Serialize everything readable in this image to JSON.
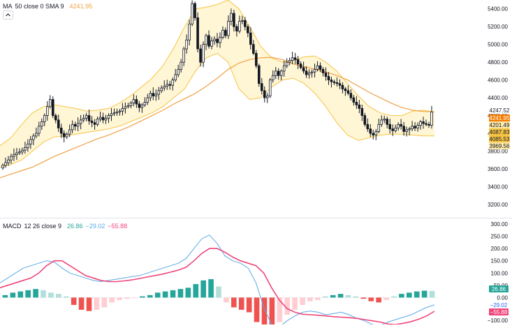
{
  "colors": {
    "up": "#26a69a",
    "down": "#ef5350",
    "candle_border": "#131722",
    "band_line": "#f6c445",
    "band_fill": "#fff4cc",
    "ma_line": "#f0a044",
    "macd_line": "#5aa9e6",
    "signal_line": "#f0457a",
    "hist_up_strong": "#26a69a",
    "hist_up_weak": "#b2dfdb",
    "hist_down_strong": "#ef5350",
    "hist_down_weak": "#ffcdd2",
    "axis_text": "#131722",
    "grid": "#f0f3fa"
  },
  "price_panel": {
    "indicator_title": "MA",
    "indicator_params": "50 close 0 SMA 9",
    "indicator_value": "4241.95",
    "y_ticks": [
      "5400.00",
      "5200.00",
      "5000.00",
      "4800.00",
      "4600.00",
      "4400.00",
      "4200.00",
      "4000.00",
      "3800.00",
      "3600.00",
      "3400.00",
      "3200.00"
    ],
    "badges": [
      {
        "label": "4247.52",
        "bg": "#ffffff",
        "fg": "#131722"
      },
      {
        "label": "4241.95",
        "bg": "#f57c00",
        "fg": "#ffffff"
      },
      {
        "label": "4201.49",
        "bg": "#fde9a8",
        "fg": "#131722"
      },
      {
        "label": "4087.83",
        "bg": "#f6c445",
        "fg": "#131722"
      },
      {
        "label": "4085.53",
        "bg": "#f6c445",
        "fg": "#131722"
      },
      {
        "label": "3969.56",
        "bg": "#fde9a8",
        "fg": "#131722"
      }
    ]
  },
  "macd_panel": {
    "indicator_title": "MACD",
    "indicator_params": "12 26 close 9",
    "hist_value": "26.86",
    "macd_value": "−29.02",
    "signal_value": "−55.88",
    "y_ticks": [
      "300.00",
      "250.00",
      "200.00",
      "150.00",
      "100.00",
      "50.00",
      "0.00",
      "−50.00",
      "−100.00"
    ],
    "badges": [
      {
        "label": "26.86",
        "bg": "#26a69a",
        "fg": "#ffffff"
      },
      {
        "label": "−29.02",
        "bg": "#ffffff",
        "fg": "#2962ff"
      },
      {
        "label": "−55.88",
        "bg": "#f0457a",
        "fg": "#ffffff"
      }
    ]
  },
  "chart_data": [
    {
      "type": "candlestick",
      "title": "",
      "ylim": [
        3050,
        5500
      ],
      "grid": false,
      "indicator": "MA 50 close 0 SMA 9",
      "candles_close": [
        3640,
        3670,
        3700,
        3740,
        3760,
        3780,
        3790,
        3810,
        3840,
        3880,
        3930,
        3970,
        4000,
        4080,
        4130,
        4200,
        4300,
        4380,
        4200,
        4150,
        4060,
        4000,
        3960,
        3990,
        4040,
        4100,
        4080,
        4110,
        4150,
        4170,
        4200,
        4140,
        4120,
        4100,
        4160,
        4180,
        4150,
        4170,
        4200,
        4220,
        4230,
        4240,
        4250,
        4280,
        4300,
        4310,
        4340,
        4380,
        4330,
        4290,
        4320,
        4350,
        4400,
        4450,
        4420,
        4440,
        4480,
        4510,
        4530,
        4550,
        4540,
        4600,
        4660,
        4720,
        4800,
        4950,
        5050,
        5230,
        5460,
        5300,
        4950,
        4800,
        5000,
        5100,
        4980,
        5040,
        5060,
        5020,
        5080,
        5160,
        5100,
        5260,
        5350,
        5200,
        5150,
        5260,
        5270,
        5200,
        5130,
        5000,
        4900,
        4760,
        4560,
        4480,
        4400,
        4420,
        4600,
        4650,
        4700,
        4650,
        4700,
        4760,
        4800,
        4820,
        4850,
        4830,
        4780,
        4740,
        4700,
        4660,
        4680,
        4690,
        4720,
        4760,
        4720,
        4680,
        4640,
        4600,
        4580,
        4570,
        4560,
        4540,
        4500,
        4480,
        4450,
        4400,
        4350,
        4320,
        4280,
        4200,
        4100,
        4050,
        4000,
        3980,
        4020,
        4100,
        4150,
        4160,
        4100,
        4050,
        4030,
        4060,
        4100,
        4080,
        4020,
        4040,
        4050,
        4080,
        4060,
        4090,
        4130,
        4110,
        4100,
        4090,
        4240
      ],
      "ma_series": [
        3500,
        3540,
        3580,
        3620,
        3680,
        3740,
        3790,
        3840,
        3890,
        3940,
        3980,
        4030,
        4080,
        4140,
        4200,
        4260,
        4330,
        4390,
        4450,
        4530,
        4620,
        4720,
        4790,
        4830,
        4850,
        4855,
        4830,
        4780,
        4750,
        4720,
        4690,
        4650,
        4600,
        4530,
        4460,
        4400,
        4340,
        4290,
        4260,
        4245,
        4242
      ],
      "bollinger_upper": [
        3860,
        3950,
        4100,
        4230,
        4300,
        4320,
        4300,
        4280,
        4250,
        4260,
        4280,
        4340,
        4420,
        4520,
        4620,
        4760,
        4960,
        5200,
        5400,
        5420,
        5450,
        5500,
        5400,
        5200,
        4980,
        4850,
        4800,
        4820,
        4860,
        4870,
        4800,
        4700,
        4560,
        4420,
        4300,
        4230,
        4200,
        4200,
        4250,
        4260,
        4240
      ],
      "bollinger_lower": [
        3620,
        3650,
        3700,
        3800,
        3900,
        3960,
        3970,
        3990,
        4010,
        4030,
        4050,
        4080,
        4130,
        4180,
        4230,
        4300,
        4400,
        4500,
        4700,
        4850,
        4900,
        4800,
        4500,
        4380,
        4400,
        4520,
        4600,
        4620,
        4560,
        4450,
        4300,
        4120,
        3980,
        3920,
        3950,
        3980,
        3990,
        3990,
        3980,
        3970,
        3970
      ]
    },
    {
      "type": "line",
      "title": "",
      "ylim": [
        -110,
        320
      ],
      "series": [
        {
          "role": "macd",
          "values": [
            60,
            80,
            100,
            120,
            130,
            140,
            150,
            145,
            120,
            100,
            90,
            80,
            70,
            65,
            70,
            75,
            80,
            85,
            90,
            100,
            110,
            120,
            130,
            140,
            160,
            200,
            240,
            255,
            220,
            170,
            150,
            140,
            120,
            60,
            -40,
            -110,
            -120,
            -95,
            -75,
            -60,
            -55,
            -60,
            -70,
            -65,
            -60,
            -70,
            -85,
            -95,
            -110,
            -115,
            -100,
            -90,
            -80,
            -70,
            -55,
            -40,
            -30
          ]
        },
        {
          "role": "signal",
          "values": [
            40,
            50,
            60,
            70,
            80,
            100,
            130,
            150,
            150,
            130,
            110,
            90,
            80,
            70,
            65,
            65,
            68,
            72,
            78,
            84,
            90,
            96,
            104,
            112,
            124,
            150,
            180,
            200,
            200,
            185,
            165,
            150,
            140,
            130,
            100,
            40,
            -10,
            -45,
            -60,
            -68,
            -70,
            -72,
            -75,
            -78,
            -80,
            -82,
            -85,
            -90,
            -95,
            -100,
            -108,
            -110,
            -105,
            -98,
            -88,
            -75,
            -56
          ]
        },
        {
          "role": "histogram",
          "values": [
            10,
            20,
            25,
            30,
            35,
            30,
            20,
            15,
            5,
            -30,
            -50,
            -55,
            -50,
            -40,
            -20,
            -10,
            -5,
            -2,
            5,
            10,
            20,
            25,
            30,
            35,
            40,
            55,
            70,
            75,
            45,
            -20,
            -40,
            -50,
            -60,
            -100,
            -120,
            -130,
            -100,
            -70,
            -50,
            -30,
            -15,
            -10,
            5,
            10,
            15,
            10,
            5,
            -5,
            -15,
            -20,
            -10,
            5,
            15,
            20,
            25,
            28,
            27
          ]
        }
      ]
    }
  ]
}
